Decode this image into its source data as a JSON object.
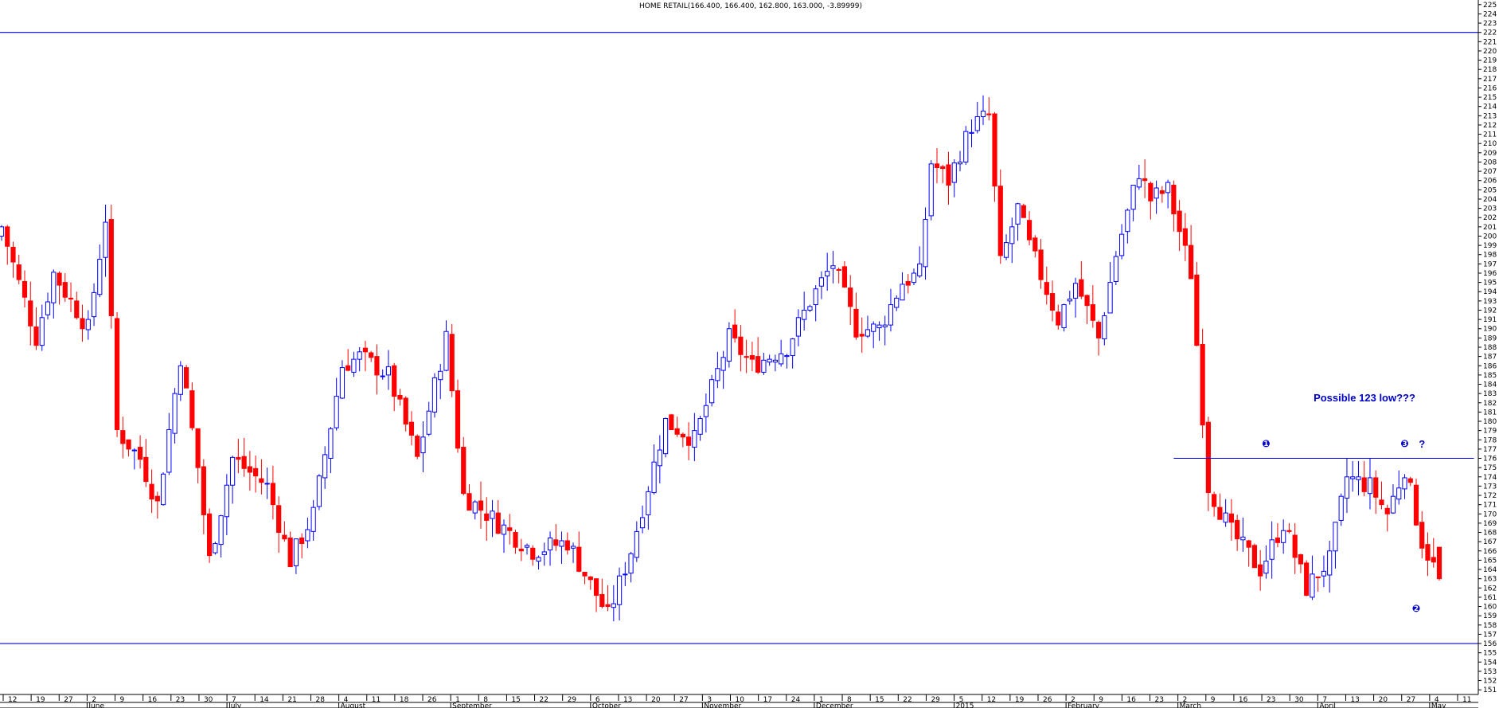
{
  "chart_data": {
    "type": "candlestick",
    "title": "HOME RETAIL(166.400, 166.400, 162.800, 163.000, -3.89999)",
    "ylim": [
      150.5,
      225.5
    ],
    "y_ticks": [
      151,
      152,
      153,
      154,
      155,
      156,
      157,
      158,
      159,
      160,
      161,
      162,
      163,
      164,
      165,
      166,
      167,
      168,
      169,
      170,
      171,
      172,
      173,
      174,
      175,
      176,
      177,
      178,
      179,
      180,
      181,
      182,
      183,
      184,
      185,
      186,
      187,
      188,
      189,
      190,
      191,
      192,
      193,
      194,
      195,
      196,
      197,
      198,
      199,
      200,
      201,
      202,
      203,
      204,
      205,
      206,
      207,
      208,
      209,
      210,
      211,
      212,
      213,
      214,
      215,
      216,
      217,
      218,
      219,
      220,
      221,
      222,
      223,
      224,
      225
    ],
    "x_ticks": [
      "12",
      "19",
      "27",
      "2",
      "9",
      "16",
      "23",
      "30",
      "7",
      "14",
      "21",
      "28",
      "4",
      "11",
      "18",
      "26",
      "1",
      "8",
      "15",
      "22",
      "29",
      "6",
      "13",
      "20",
      "27",
      "3",
      "10",
      "17",
      "24",
      "1",
      "8",
      "15",
      "22",
      "29",
      "5",
      "12",
      "19",
      "26",
      "2",
      "9",
      "16",
      "23",
      "2",
      "9",
      "16",
      "23",
      "30",
      "7",
      "13",
      "20",
      "27",
      "4",
      "11"
    ],
    "months": [
      "June",
      "July",
      "August",
      "September",
      "October",
      "November",
      "December",
      "2015",
      "February",
      "March",
      "April",
      "May"
    ],
    "colors": {
      "up": "#0000ff",
      "down": "#ff0000",
      "line": "#0000ff",
      "annotation": "#0000cc"
    },
    "horizontal_lines": [
      222,
      156
    ],
    "resistance_line": 176,
    "annotation": "Possible 123 low???",
    "markers": {
      "m1": "1",
      "m2": "2",
      "m3": "3",
      "q": "?"
    },
    "anchors": [
      [
        0,
        201
      ],
      [
        6,
        189
      ],
      [
        9,
        196
      ],
      [
        15,
        190
      ],
      [
        18,
        202
      ],
      [
        20,
        179
      ],
      [
        24,
        176
      ],
      [
        27,
        171
      ],
      [
        31,
        187
      ],
      [
        34,
        175
      ],
      [
        36,
        165
      ],
      [
        40,
        176
      ],
      [
        46,
        173
      ],
      [
        50,
        165
      ],
      [
        54,
        170
      ],
      [
        59,
        186
      ],
      [
        62,
        187
      ],
      [
        67,
        185
      ],
      [
        72,
        176
      ],
      [
        77,
        189
      ],
      [
        80,
        172
      ],
      [
        86,
        169
      ],
      [
        92,
        166
      ],
      [
        98,
        167
      ],
      [
        105,
        159
      ],
      [
        109,
        166
      ],
      [
        115,
        180
      ],
      [
        120,
        178
      ],
      [
        126,
        189
      ],
      [
        130,
        186
      ],
      [
        136,
        188
      ],
      [
        140,
        193
      ],
      [
        144,
        197
      ],
      [
        148,
        190
      ],
      [
        152,
        190
      ],
      [
        156,
        195
      ],
      [
        159,
        196
      ],
      [
        161,
        208
      ],
      [
        164,
        206
      ],
      [
        168,
        212
      ],
      [
        171,
        213
      ],
      [
        173,
        197
      ],
      [
        176,
        203
      ],
      [
        178,
        199
      ],
      [
        183,
        191
      ],
      [
        186,
        195
      ],
      [
        190,
        189
      ],
      [
        193,
        198
      ],
      [
        197,
        207
      ],
      [
        199,
        204
      ],
      [
        202,
        205
      ],
      [
        206,
        196
      ],
      [
        209,
        173
      ],
      [
        213,
        168
      ],
      [
        218,
        164
      ],
      [
        222,
        169
      ],
      [
        226,
        162
      ],
      [
        230,
        165
      ],
      [
        233,
        174
      ],
      [
        237,
        173
      ],
      [
        240,
        170
      ],
      [
        243,
        175
      ],
      [
        246,
        167
      ],
      [
        249,
        163
      ]
    ],
    "candles": []
  }
}
